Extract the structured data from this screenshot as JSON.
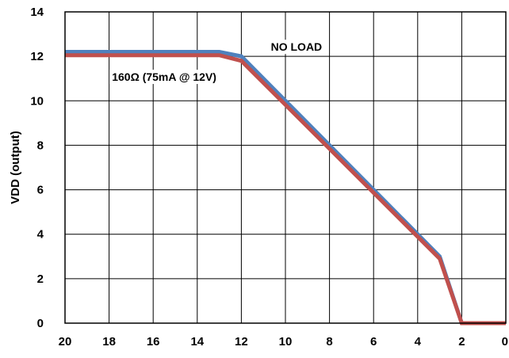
{
  "chart_data": {
    "type": "line",
    "title": "",
    "xlabel": "",
    "ylabel": "VDD (output)",
    "xlim": [
      20,
      0
    ],
    "ylim": [
      0,
      14
    ],
    "x_ticks": [
      20,
      18,
      16,
      14,
      12,
      10,
      8,
      6,
      4,
      2,
      0
    ],
    "y_ticks": [
      0,
      2,
      4,
      6,
      8,
      10,
      12,
      14
    ],
    "x_tick_labels": [
      "20",
      "18",
      "16",
      "14",
      "12",
      "10",
      "8",
      "6",
      "4",
      "2",
      "0"
    ],
    "y_tick_labels": [
      "0",
      "2",
      "4",
      "6",
      "8",
      "10",
      "12",
      "14"
    ],
    "grid": true,
    "series": [
      {
        "name": "NO LOAD",
        "color": "#4f81bd",
        "points": [
          [
            20,
            12.2
          ],
          [
            13,
            12.2
          ],
          [
            12,
            12.0
          ],
          [
            3,
            3.0
          ],
          [
            2,
            0
          ],
          [
            0,
            0
          ]
        ]
      },
      {
        "name": "160Ω (75mA @ 12V)",
        "color": "#c0504d",
        "points": [
          [
            20,
            12.05
          ],
          [
            13,
            12.05
          ],
          [
            12,
            11.8
          ],
          [
            3,
            2.9
          ],
          [
            2,
            0
          ],
          [
            0,
            0
          ]
        ]
      }
    ],
    "annotations": [
      {
        "text": "NO LOAD",
        "x": 9.5,
        "y": 12.25,
        "series": 0
      },
      {
        "text": "160Ω (75mA @ 12V)",
        "x": 15.5,
        "y": 10.9,
        "series": 1
      }
    ]
  }
}
